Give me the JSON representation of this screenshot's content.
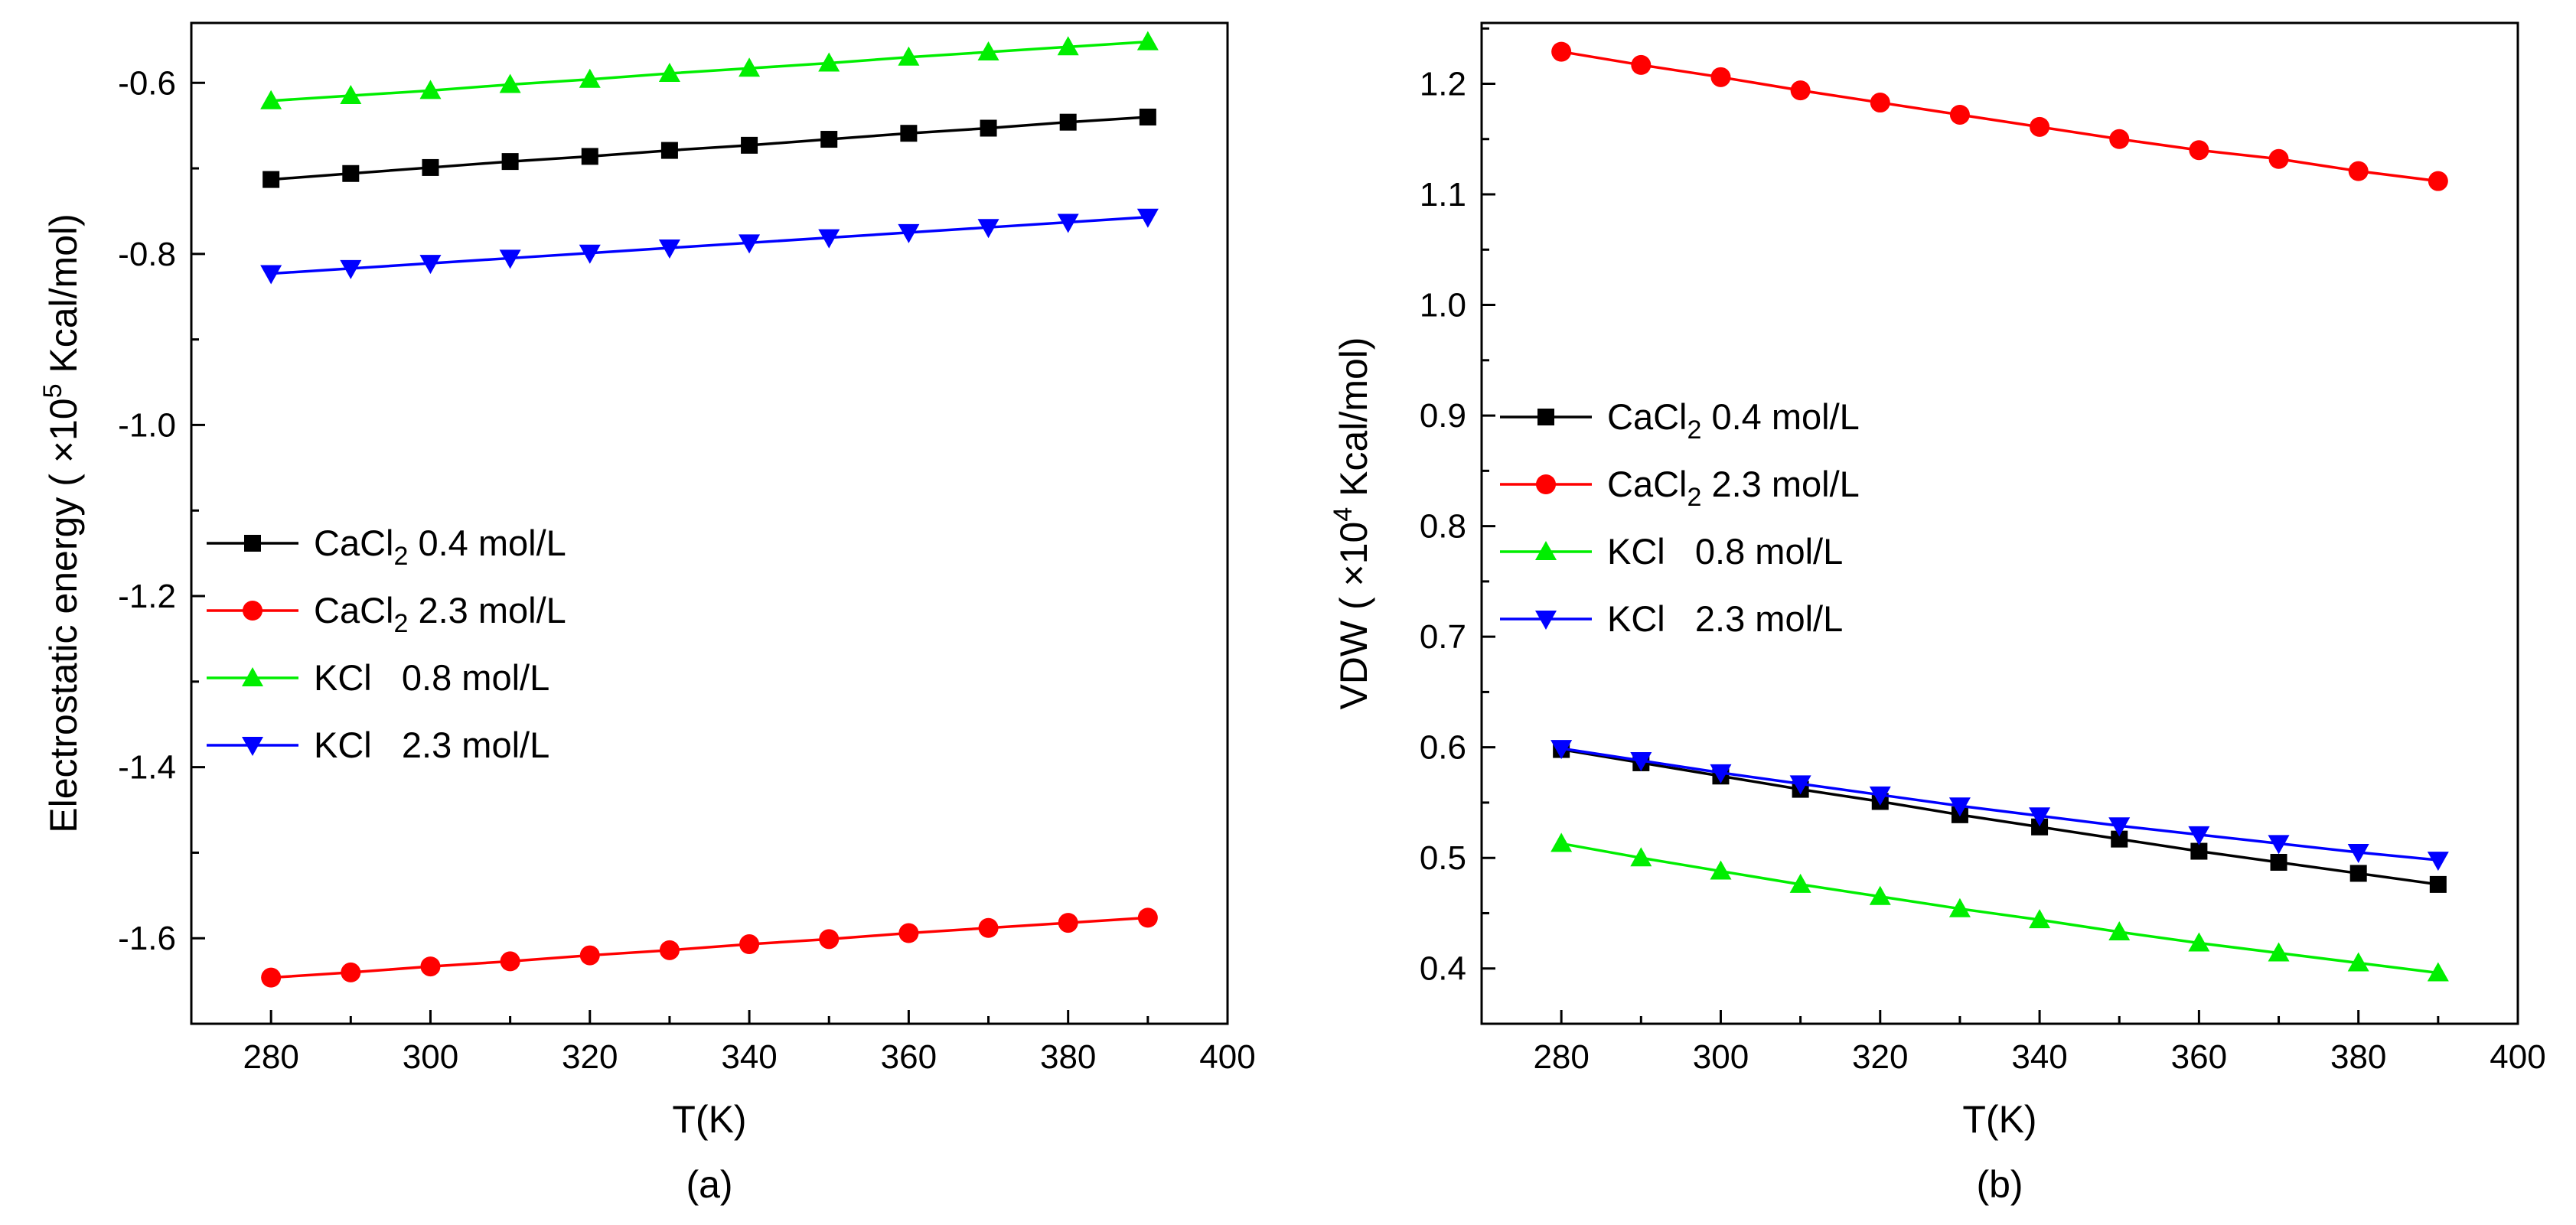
{
  "chart_data": [
    {
      "type": "line",
      "caption": "(a)",
      "xlabel": "T(K)",
      "ylabel": "Electrostatic energy ( ×10",
      "ylabel_exponent": "5",
      "ylabel_unit": " Kcal/mol)",
      "xlim": [
        270,
        400
      ],
      "ylim": [
        -1.7,
        -0.53
      ],
      "x_ticks": [
        280,
        300,
        320,
        340,
        360,
        380,
        400
      ],
      "y_ticks": [
        -1.6,
        -1.4,
        -1.2,
        -1.0,
        -0.8,
        -0.6
      ],
      "y_tick_labels": [
        "-1.6",
        "-1.4",
        "-1.2",
        "-1.0",
        "-0.8",
        "-0.6"
      ],
      "legend_position": "center-left",
      "x": [
        280,
        290,
        300,
        310,
        320,
        330,
        340,
        350,
        360,
        370,
        380,
        390
      ],
      "series": [
        {
          "name": "CaCl2 0.4 mol/L",
          "label_main": "CaCl",
          "label_sub": "2",
          "label_rest": " 0.4 mol/L",
          "color": "#000000",
          "marker": "square",
          "values": [
            -0.713,
            -0.706,
            -0.699,
            -0.692,
            -0.686,
            -0.679,
            -0.673,
            -0.666,
            -0.659,
            -0.653,
            -0.646,
            -0.64
          ]
        },
        {
          "name": "CaCl2 2.3 mol/L",
          "label_main": "CaCl",
          "label_sub": "2",
          "label_rest": " 2.3 mol/L",
          "color": "#ff0000",
          "marker": "circle",
          "values": [
            -1.646,
            -1.64,
            -1.633,
            -1.627,
            -1.62,
            -1.614,
            -1.607,
            -1.601,
            -1.594,
            -1.588,
            -1.582,
            -1.576
          ]
        },
        {
          "name": "KCl 0.8 mol/L",
          "label_main": "KCl   0.8 mol/L",
          "label_sub": "",
          "label_rest": "",
          "color": "#00ee00",
          "marker": "triangle-up",
          "values": [
            -0.621,
            -0.615,
            -0.609,
            -0.602,
            -0.596,
            -0.589,
            -0.583,
            -0.577,
            -0.57,
            -0.564,
            -0.558,
            -0.552
          ]
        },
        {
          "name": "KCl 2.3 mol/L",
          "label_main": "KCl   2.3 mol/L",
          "label_sub": "",
          "label_rest": "",
          "color": "#0000ff",
          "marker": "triangle-down",
          "values": [
            -0.823,
            -0.817,
            -0.811,
            -0.805,
            -0.799,
            -0.793,
            -0.787,
            -0.781,
            -0.775,
            -0.769,
            -0.763,
            -0.757
          ]
        }
      ]
    },
    {
      "type": "line",
      "caption": "(b)",
      "xlabel": "T(K)",
      "ylabel": "VDW ( ×10",
      "ylabel_exponent": "4",
      "ylabel_unit": " Kcal/mol)",
      "xlim": [
        270,
        400
      ],
      "ylim": [
        0.35,
        1.255
      ],
      "x_ticks": [
        280,
        300,
        320,
        340,
        360,
        380,
        400
      ],
      "y_ticks": [
        0.4,
        0.5,
        0.6,
        0.7,
        0.8,
        0.9,
        1.0,
        1.1,
        1.2
      ],
      "y_tick_labels": [
        "0.4",
        "0.5",
        "0.6",
        "0.7",
        "0.8",
        "0.9",
        "1.0",
        "1.1",
        "1.2"
      ],
      "legend_position": "center-left",
      "x": [
        280,
        290,
        300,
        310,
        320,
        330,
        340,
        350,
        360,
        370,
        380,
        390
      ],
      "series": [
        {
          "name": "CaCl2 0.4 mol/L",
          "label_main": "CaCl",
          "label_sub": "2",
          "label_rest": " 0.4 mol/L",
          "color": "#000000",
          "marker": "square",
          "values": [
            0.598,
            0.586,
            0.574,
            0.562,
            0.551,
            0.539,
            0.528,
            0.517,
            0.506,
            0.496,
            0.486,
            0.476
          ]
        },
        {
          "name": "CaCl2 2.3 mol/L",
          "label_main": "CaCl",
          "label_sub": "2",
          "label_rest": " 2.3 mol/L",
          "color": "#ff0000",
          "marker": "circle",
          "values": [
            1.229,
            1.217,
            1.206,
            1.194,
            1.183,
            1.172,
            1.161,
            1.15,
            1.14,
            1.132,
            1.121,
            1.112
          ]
        },
        {
          "name": "KCl 0.8 mol/L",
          "label_main": "KCl   0.8 mol/L",
          "label_sub": "",
          "label_rest": "",
          "color": "#00ee00",
          "marker": "triangle-up",
          "values": [
            0.513,
            0.5,
            0.488,
            0.476,
            0.465,
            0.454,
            0.444,
            0.433,
            0.423,
            0.414,
            0.405,
            0.396
          ]
        },
        {
          "name": "KCl 2.3 mol/L",
          "label_main": "KCl   2.3 mol/L",
          "label_sub": "",
          "label_rest": "",
          "color": "#0000ff",
          "marker": "triangle-down",
          "values": [
            0.599,
            0.588,
            0.577,
            0.567,
            0.557,
            0.547,
            0.538,
            0.529,
            0.521,
            0.513,
            0.505,
            0.498
          ]
        }
      ]
    }
  ]
}
